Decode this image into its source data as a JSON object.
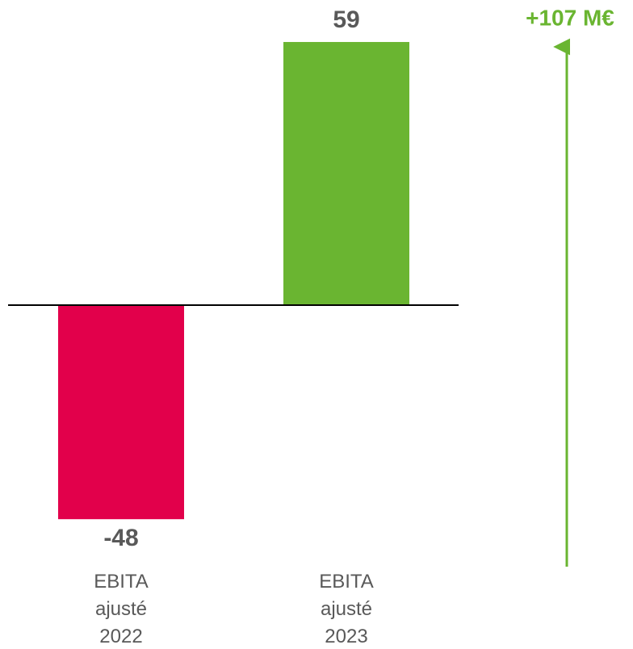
{
  "chart_data": {
    "type": "bar",
    "categories": [
      "EBITA ajusté 2022",
      "EBITA ajusté 2023"
    ],
    "values": [
      -48,
      59
    ],
    "colors": [
      "#e2004b",
      "#6ab531"
    ],
    "annotation": "+107 M€",
    "annotation_color": "#6ab531"
  }
}
